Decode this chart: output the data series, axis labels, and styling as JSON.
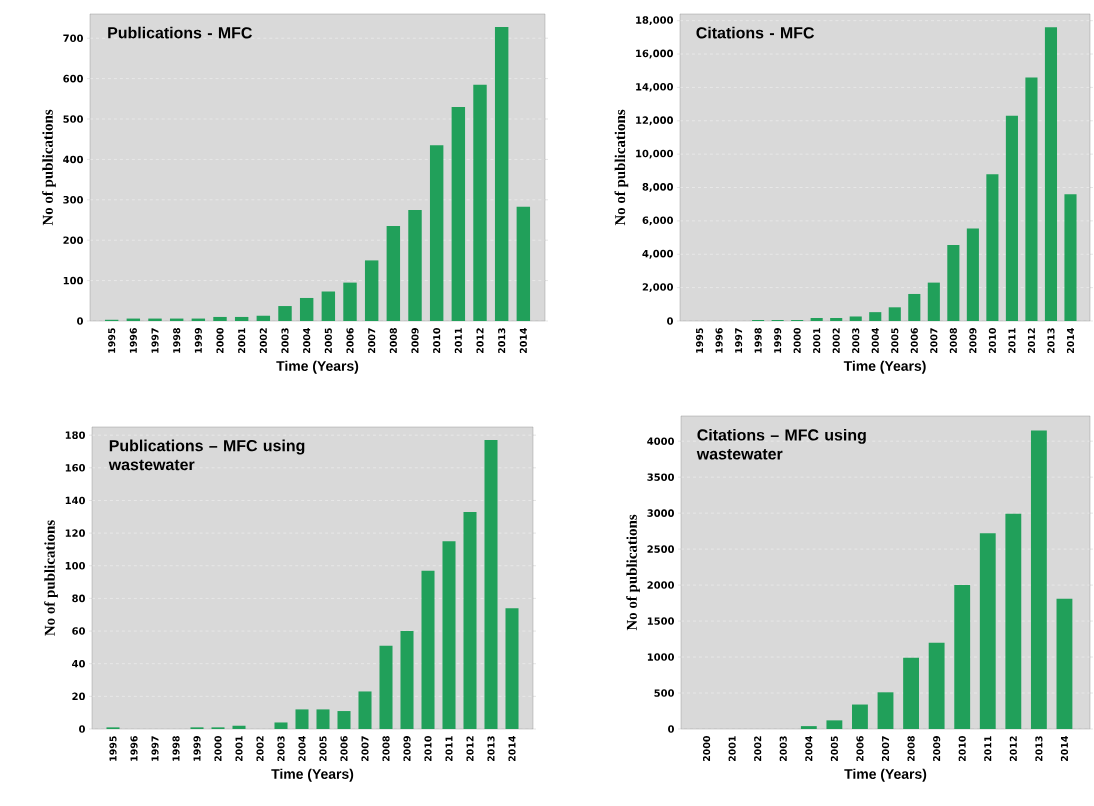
{
  "chart_data": [
    {
      "type": "bar",
      "title": "Publications - MFC",
      "xlabel": "Time (Years)",
      "ylabel": "No of publications",
      "color": "#21a05a",
      "grid": "y",
      "categories": [
        "1995",
        "1996",
        "1997",
        "1998",
        "1999",
        "2000",
        "2001",
        "2002",
        "2003",
        "2004",
        "2005",
        "2006",
        "2007",
        "2008",
        "2009",
        "2010",
        "2011",
        "2012",
        "2013",
        "2014"
      ],
      "values": [
        3,
        6,
        6,
        6,
        6,
        10,
        10,
        13,
        37,
        57,
        73,
        95,
        150,
        235,
        275,
        435,
        530,
        585,
        728,
        283
      ],
      "ylim": [
        0,
        760
      ],
      "yticks": [
        0,
        100,
        200,
        300,
        400,
        500,
        600,
        700
      ]
    },
    {
      "type": "bar",
      "title": "Citations - MFC",
      "xlabel": "Time (Years)",
      "ylabel": "No of publications",
      "color": "#21a05a",
      "grid": "y",
      "categories": [
        "1995",
        "1996",
        "1997",
        "1998",
        "1999",
        "2000",
        "2001",
        "2002",
        "2003",
        "2004",
        "2005",
        "2006",
        "2007",
        "2008",
        "2009",
        "2010",
        "2011",
        "2012",
        "2013",
        "2014"
      ],
      "values": [
        0,
        0,
        0,
        60,
        60,
        60,
        180,
        180,
        270,
        530,
        820,
        1620,
        2300,
        4550,
        5550,
        8800,
        12300,
        14600,
        17600,
        7600
      ],
      "ylim": [
        0,
        18400
      ],
      "yticks": [
        {
          "value": 0,
          "label": "0"
        },
        {
          "value": 2000,
          "label": "2,000"
        },
        {
          "value": 4000,
          "label": "4,000"
        },
        {
          "value": 6000,
          "label": "6,000"
        },
        {
          "value": 8000,
          "label": "8,000"
        },
        {
          "value": 10000,
          "label": "10,000"
        },
        {
          "value": 12000,
          "label": "12,000"
        },
        {
          "value": 14000,
          "label": "14,000"
        },
        {
          "value": 16000,
          "label": "16,000"
        },
        {
          "value": 18000,
          "label": "18,000"
        }
      ]
    },
    {
      "type": "bar",
      "title": "Publications – MFC using wastewater",
      "xlabel": "Time (Years)",
      "ylabel": "No of publications",
      "color": "#21a05a",
      "grid": "y",
      "categories": [
        "1995",
        "1996",
        "1997",
        "1998",
        "1999",
        "2000",
        "2001",
        "2002",
        "2003",
        "2004",
        "2005",
        "2006",
        "2007",
        "2008",
        "2009",
        "2010",
        "2011",
        "2012",
        "2013",
        "2014"
      ],
      "values": [
        1,
        0,
        0,
        0,
        1,
        1,
        2,
        0,
        4,
        12,
        12,
        11,
        23,
        51,
        60,
        97,
        115,
        133,
        177,
        74
      ],
      "ylim": [
        0,
        185
      ],
      "yticks": [
        0,
        20,
        40,
        60,
        80,
        100,
        120,
        140,
        160,
        180
      ]
    },
    {
      "type": "bar",
      "title": "Citations – MFC using wastewater",
      "xlabel": "Time (Years)",
      "ylabel": "No of publications",
      "color": "#21a05a",
      "grid": "y",
      "categories": [
        "2000",
        "2001",
        "2002",
        "2003",
        "2004",
        "2005",
        "2006",
        "2007",
        "2008",
        "2009",
        "2010",
        "2011",
        "2012",
        "2013",
        "2014"
      ],
      "values": [
        0,
        0,
        0,
        0,
        40,
        120,
        340,
        510,
        990,
        1200,
        2000,
        2720,
        2990,
        4150,
        1810
      ],
      "ylim": [
        0,
        4350
      ],
      "yticks": [
        0,
        500,
        1000,
        1500,
        2000,
        2500,
        3000,
        3500,
        4000
      ]
    }
  ]
}
